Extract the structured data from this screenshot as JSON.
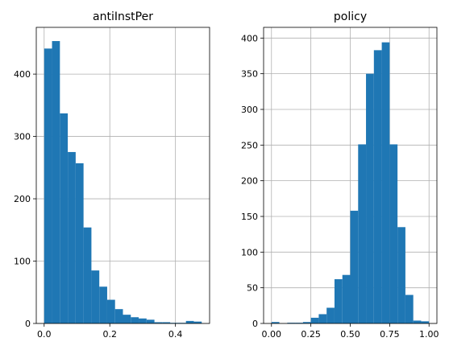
{
  "chart_data": [
    {
      "type": "bar",
      "title": "antiInstPer",
      "xlabel": "",
      "ylabel": "",
      "xlim": [
        -0.024,
        0.504
      ],
      "ylim": [
        0,
        475
      ],
      "xticks": [
        0.0,
        0.2,
        0.4
      ],
      "xtick_labels": [
        "0.0",
        "0.2",
        "0.4"
      ],
      "yticks": [
        0,
        100,
        200,
        300,
        400
      ],
      "ytick_labels": [
        "0",
        "100",
        "200",
        "300",
        "400"
      ],
      "grid": true,
      "color": "#1f77b4",
      "bin_start": 0.0,
      "bin_width": 0.024,
      "values": [
        441,
        453,
        337,
        275,
        257,
        154,
        85,
        59,
        38,
        23,
        14,
        10,
        8,
        6,
        2,
        2,
        1,
        1,
        4,
        3
      ]
    },
    {
      "type": "bar",
      "title": "policy",
      "xlabel": "",
      "ylabel": "",
      "xlim": [
        -0.05,
        1.05
      ],
      "ylim": [
        0,
        415
      ],
      "xticks": [
        0.0,
        0.25,
        0.5,
        0.75,
        1.0
      ],
      "xtick_labels": [
        "0.00",
        "0.25",
        "0.50",
        "0.75",
        "1.00"
      ],
      "yticks": [
        0,
        50,
        100,
        150,
        200,
        250,
        300,
        350,
        400
      ],
      "ytick_labels": [
        "0",
        "50",
        "100",
        "150",
        "200",
        "250",
        "300",
        "350",
        "400"
      ],
      "grid": true,
      "color": "#1f77b4",
      "bin_start": 0.0,
      "bin_width": 0.05,
      "values": [
        2,
        0,
        1,
        1,
        2,
        8,
        13,
        22,
        62,
        68,
        158,
        251,
        350,
        383,
        394,
        251,
        135,
        40,
        4,
        3
      ]
    }
  ]
}
